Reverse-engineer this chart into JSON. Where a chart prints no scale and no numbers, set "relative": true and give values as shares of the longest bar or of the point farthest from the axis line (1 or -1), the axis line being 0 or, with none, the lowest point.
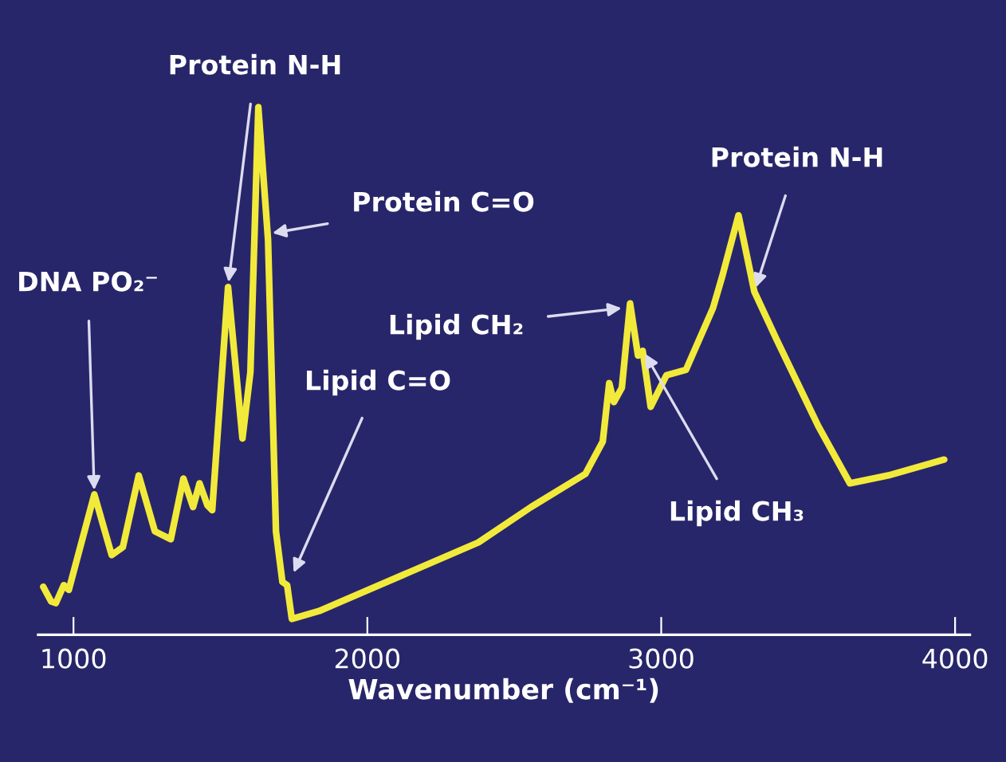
{
  "chart_data": {
    "type": "line",
    "relative": true,
    "xlabel": "Wavenumber (cm⁻¹)",
    "xlim": [
      880,
      4050
    ],
    "xticks": [
      1000,
      2000,
      3000,
      4000
    ],
    "grid": false,
    "legend": false,
    "marker": "none",
    "line_style": "solid",
    "series": [
      {
        "color": "#f2ea3a",
        "x": [
          897,
          924,
          940,
          967,
          984,
          1071,
          1130,
          1168,
          1222,
          1277,
          1331,
          1374,
          1407,
          1429,
          1456,
          1472,
          1526,
          1575,
          1602,
          1629,
          1662,
          1689,
          1711,
          1727,
          1743,
          1836,
          2378,
          2557,
          2742,
          2801,
          2823,
          2839,
          2866,
          2894,
          2921,
          2937,
          2964,
          3018,
          3084,
          3176,
          3208,
          3263,
          3317,
          3393,
          3534,
          3642,
          3773,
          3963
        ],
        "values": [
          0.091,
          0.063,
          0.06,
          0.094,
          0.085,
          0.266,
          0.151,
          0.166,
          0.302,
          0.196,
          0.181,
          0.296,
          0.242,
          0.287,
          0.245,
          0.236,
          0.659,
          0.372,
          0.498,
          1.0,
          0.749,
          0.196,
          0.1,
          0.094,
          0.03,
          0.045,
          0.175,
          0.242,
          0.305,
          0.366,
          0.477,
          0.441,
          0.468,
          0.628,
          0.529,
          0.538,
          0.432,
          0.492,
          0.502,
          0.619,
          0.68,
          0.795,
          0.65,
          0.559,
          0.396,
          0.287,
          0.302,
          0.332
        ]
      }
    ],
    "annotations": [
      {
        "text": "DNA PO₂⁻",
        "x": 1071,
        "y": 0.266
      },
      {
        "text": "Protein N-H",
        "x": 1526,
        "y": 0.66
      },
      {
        "text": "Protein C=O",
        "x": 1662,
        "y": 0.76
      },
      {
        "text": "Lipid C=O",
        "x": 1743,
        "y": 0.11
      },
      {
        "text": "Lipid CH₂",
        "x": 2880,
        "y": 0.62
      },
      {
        "text": "Lipid CH₃",
        "x": 2937,
        "y": 0.54
      },
      {
        "text": "Protein N-H",
        "x": 3317,
        "y": 0.65
      }
    ]
  }
}
